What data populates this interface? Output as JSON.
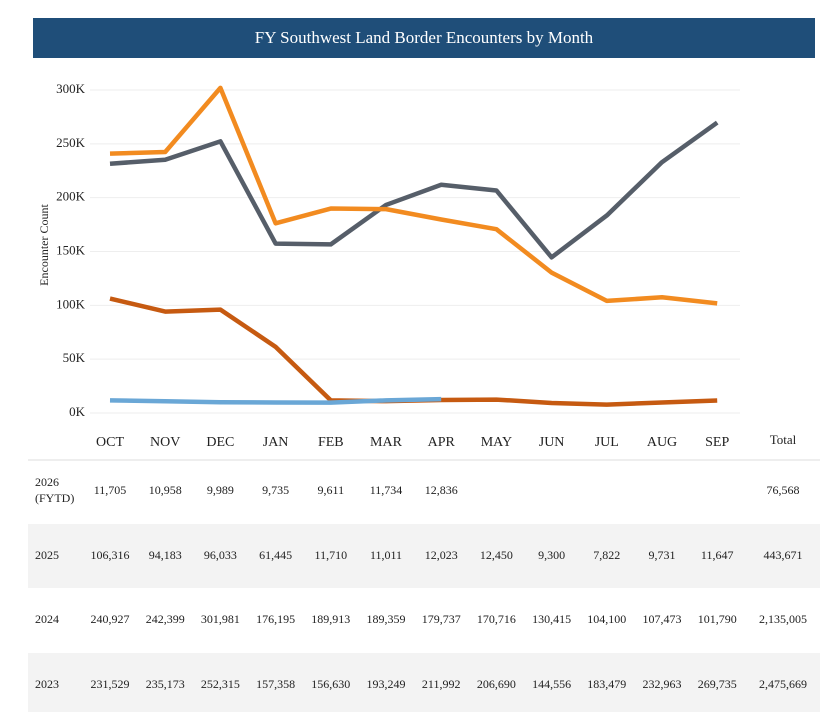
{
  "chart_data": {
    "type": "line",
    "title": "FY Southwest Land Border Encounters by Month",
    "y_label": "Encounter Count",
    "categories": [
      "OCT",
      "NOV",
      "DEC",
      "JAN",
      "FEB",
      "MAR",
      "APR",
      "MAY",
      "JUN",
      "JUL",
      "AUG",
      "SEP"
    ],
    "total_header": "Total",
    "ylim": [
      0,
      300000
    ],
    "yticks": [
      {
        "value": 0,
        "label": "0K"
      },
      {
        "value": 50000,
        "label": "50K"
      },
      {
        "value": 100000,
        "label": "100K"
      },
      {
        "value": 150000,
        "label": "150K"
      },
      {
        "value": 200000,
        "label": "200K"
      },
      {
        "value": 250000,
        "label": "250K"
      },
      {
        "value": 300000,
        "label": "300K"
      }
    ],
    "grid": true,
    "series": [
      {
        "name": "2026 (FYTD)",
        "color": "#6aa7d6",
        "values": [
          11705,
          10958,
          9989,
          9735,
          9611,
          11734,
          12836,
          null,
          null,
          null,
          null,
          null
        ],
        "value_labels": [
          "11,705",
          "10,958",
          "9,989",
          "9,735",
          "9,611",
          "11,734",
          "12,836",
          null,
          null,
          null,
          null,
          null
        ],
        "total": "76,568"
      },
      {
        "name": "2025",
        "color": "#c65a11",
        "values": [
          106316,
          94183,
          96033,
          61445,
          11710,
          11011,
          12023,
          12450,
          9300,
          7822,
          9731,
          11647
        ],
        "value_labels": [
          "106,316",
          "94,183",
          "96,033",
          "61,445",
          "11,710",
          "11,011",
          "12,023",
          "12,450",
          "9,300",
          "7,822",
          "9,731",
          "11,647"
        ],
        "total": "443,671"
      },
      {
        "name": "2024",
        "color": "#f28b20",
        "values": [
          240927,
          242399,
          301981,
          176195,
          189913,
          189359,
          179737,
          170716,
          130415,
          104100,
          107473,
          101790
        ],
        "value_labels": [
          "240,927",
          "242,399",
          "301,981",
          "176,195",
          "189,913",
          "189,359",
          "179,737",
          "170,716",
          "130,415",
          "104,100",
          "107,473",
          "101,790"
        ],
        "total": "2,135,005"
      },
      {
        "name": "2023",
        "color": "#565e69",
        "values": [
          231529,
          235173,
          252315,
          157358,
          156630,
          193249,
          211992,
          206690,
          144556,
          183479,
          232963,
          269735
        ],
        "value_labels": [
          "231,529",
          "235,173",
          "252,315",
          "157,358",
          "156,630",
          "193,249",
          "211,992",
          "206,690",
          "144,556",
          "183,479",
          "232,963",
          "269,735"
        ],
        "total": "2,475,669"
      }
    ]
  }
}
